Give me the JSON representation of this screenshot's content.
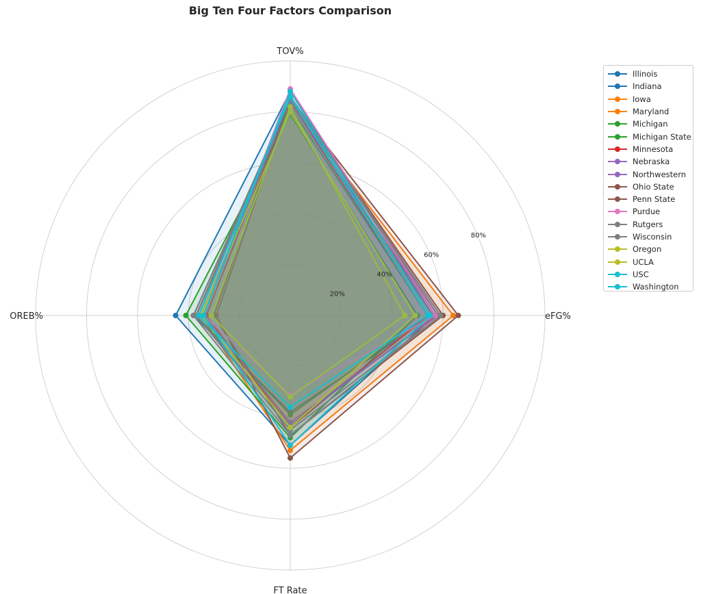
{
  "chart_data": {
    "type": "radar",
    "title": "Big Ten Four Factors Comparison",
    "axes": [
      "eFG%",
      "TOV%",
      "OREB%",
      "FT Rate"
    ],
    "radial_ticks": [
      "20%",
      "40%",
      "60%",
      "80%"
    ],
    "radial_range": [
      0,
      100
    ],
    "grid": true,
    "legend_position": "right",
    "series": [
      {
        "name": "Illinois",
        "color": "#1f77b4",
        "values": [
          57,
          88,
          45,
          51
        ]
      },
      {
        "name": "Indiana",
        "color": "#1f77b4",
        "values": [
          56,
          85,
          38,
          38
        ]
      },
      {
        "name": "Iowa",
        "color": "#ff7f0e",
        "values": [
          64,
          83,
          35,
          53
        ]
      },
      {
        "name": "Maryland",
        "color": "#ff7f0e",
        "values": [
          55,
          85,
          33,
          43
        ]
      },
      {
        "name": "Michigan",
        "color": "#2ca02c",
        "values": [
          50,
          79,
          41,
          48
        ]
      },
      {
        "name": "Michigan State",
        "color": "#2ca02c",
        "values": [
          54,
          82,
          37,
          39
        ]
      },
      {
        "name": "Minnesota",
        "color": "#d62728",
        "values": [
          54,
          84,
          33,
          44
        ]
      },
      {
        "name": "Nebraska",
        "color": "#9467bd",
        "values": [
          57,
          84,
          37,
          43
        ]
      },
      {
        "name": "Northwestern",
        "color": "#9467bd",
        "values": [
          58,
          86,
          34,
          42
        ]
      },
      {
        "name": "Ohio State",
        "color": "#8c564b",
        "values": [
          66,
          85,
          29,
          56
        ]
      },
      {
        "name": "Penn State",
        "color": "#8c564b",
        "values": [
          60,
          86,
          30,
          47
        ]
      },
      {
        "name": "Purdue",
        "color": "#e377c2",
        "values": [
          57,
          89,
          34,
          31
        ]
      },
      {
        "name": "Rutgers",
        "color": "#7f7f7f",
        "values": [
          59,
          86,
          37,
          45
        ]
      },
      {
        "name": "Wisconsin",
        "color": "#7f7f7f",
        "values": [
          59,
          85,
          38,
          47
        ]
      },
      {
        "name": "Oregon",
        "color": "#bcbd22",
        "values": [
          45,
          82,
          31,
          32
        ]
      },
      {
        "name": "UCLA",
        "color": "#bcbd22",
        "values": [
          49,
          80,
          35,
          44
        ]
      },
      {
        "name": "USC",
        "color": "#17becf",
        "values": [
          55,
          88,
          34,
          51
        ]
      },
      {
        "name": "Washington",
        "color": "#17becf",
        "values": [
          54,
          86,
          36,
          36
        ]
      }
    ]
  }
}
